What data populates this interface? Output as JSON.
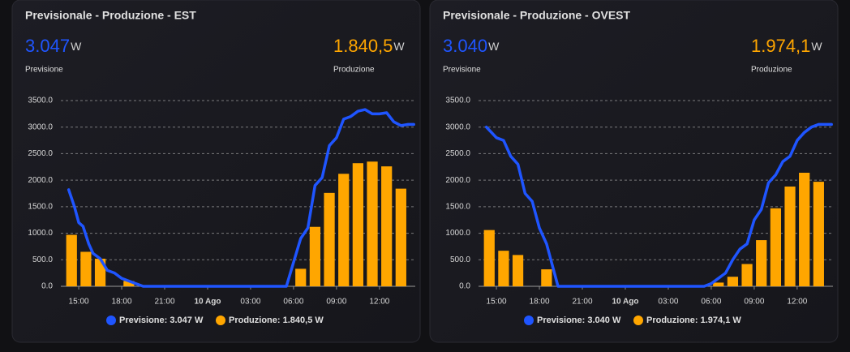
{
  "chart_data": [
    {
      "type": "line_bar",
      "title": "Previsionale - Produzione - EST",
      "stats": [
        {
          "value": "3.047",
          "unit": "W",
          "color": "#1f55ff"
        },
        {
          "value": "1.840,5",
          "unit": "W",
          "color": "#ffa600"
        }
      ],
      "xlim": [
        13.75,
        38.5
      ],
      "xticks": [
        {
          "value": 15,
          "label": "15:00"
        },
        {
          "value": 18,
          "label": "18:00"
        },
        {
          "value": 21,
          "label": "21:00"
        },
        {
          "value": 24,
          "label": "10 Ago"
        },
        {
          "value": 27,
          "label": "03:00"
        },
        {
          "value": 30,
          "label": "06:00"
        },
        {
          "value": 33,
          "label": "09:00"
        },
        {
          "value": 36,
          "label": "12:00"
        }
      ],
      "ylim": [
        0,
        3500
      ],
      "yticks": [
        {
          "value": 0,
          "label": "0.0"
        },
        {
          "value": 500,
          "label": "500.0"
        },
        {
          "value": 1000,
          "label": "1000.0"
        },
        {
          "value": 1500,
          "label": "1500.0"
        },
        {
          "value": 2000,
          "label": "2000.0"
        },
        {
          "value": 2500,
          "label": "2500.0"
        },
        {
          "value": 3000,
          "label": "3000.0"
        },
        {
          "value": 3500,
          "label": "3500.0"
        }
      ],
      "grid": true,
      "series": [
        {
          "name": "Previsione",
          "legend": "Previsione: 3.047 W",
          "type": "line",
          "color": "#1f55ff",
          "x": [
            14.3,
            14.7,
            15.0,
            15.3,
            15.7,
            16.0,
            16.5,
            17.0,
            17.5,
            18.0,
            18.5,
            19.5,
            29.5,
            30.5,
            31.0,
            31.5,
            32.0,
            32.5,
            33.0,
            33.5,
            34.0,
            34.5,
            35.0,
            35.5,
            36.0,
            36.5,
            37.0,
            37.5,
            38.0,
            38.4
          ],
          "values": [
            1820,
            1500,
            1200,
            1130,
            800,
            620,
            520,
            300,
            250,
            150,
            100,
            0,
            0,
            900,
            1100,
            1900,
            2050,
            2650,
            2800,
            3150,
            3200,
            3300,
            3330,
            3250,
            3250,
            3270,
            3100,
            3030,
            3050,
            3050
          ]
        },
        {
          "name": "Produzione",
          "legend": "Produzione: 1.840,5 W",
          "type": "bar",
          "color": "#ffa600",
          "x": [
            14.5,
            15.5,
            16.5,
            18.5,
            30.5,
            31.5,
            32.5,
            33.5,
            34.5,
            35.5,
            36.5,
            37.5
          ],
          "values": [
            970,
            650,
            520,
            100,
            330,
            1120,
            1760,
            2120,
            2320,
            2350,
            2260,
            1840
          ]
        }
      ]
    },
    {
      "type": "line_bar",
      "title": "Previsionale - Produzione - OVEST",
      "stats": [
        {
          "value": "3.040",
          "unit": "W",
          "color": "#1f55ff"
        },
        {
          "value": "1.974,1",
          "unit": "W",
          "color": "#ffa600"
        }
      ],
      "xlim": [
        13.75,
        38.5
      ],
      "xticks": [
        {
          "value": 15,
          "label": "15:00"
        },
        {
          "value": 18,
          "label": "18:00"
        },
        {
          "value": 21,
          "label": "21:00"
        },
        {
          "value": 24,
          "label": "10 Ago"
        },
        {
          "value": 27,
          "label": "03:00"
        },
        {
          "value": 30,
          "label": "06:00"
        },
        {
          "value": 33,
          "label": "09:00"
        },
        {
          "value": 36,
          "label": "12:00"
        }
      ],
      "ylim": [
        0,
        3500
      ],
      "yticks": [
        {
          "value": 0,
          "label": "0.0"
        },
        {
          "value": 500,
          "label": "500.0"
        },
        {
          "value": 1000,
          "label": "1000.0"
        },
        {
          "value": 1500,
          "label": "1500.0"
        },
        {
          "value": 2000,
          "label": "2000.0"
        },
        {
          "value": 2500,
          "label": "2500.0"
        },
        {
          "value": 3000,
          "label": "3000.0"
        },
        {
          "value": 3500,
          "label": "3500.0"
        }
      ],
      "grid": true,
      "series": [
        {
          "name": "Previsione",
          "legend": "Previsione: 3.040 W",
          "type": "line",
          "color": "#1f55ff",
          "x": [
            14.3,
            15.0,
            15.5,
            16.0,
            16.5,
            17.0,
            17.5,
            18.0,
            18.5,
            19.0,
            19.3,
            29.5,
            30.0,
            30.5,
            31.0,
            31.5,
            32.0,
            32.5,
            33.0,
            33.5,
            34.0,
            34.5,
            35.0,
            35.5,
            36.0,
            36.5,
            37.0,
            37.5,
            38.4
          ],
          "values": [
            3000,
            2800,
            2750,
            2450,
            2300,
            1750,
            1600,
            1100,
            800,
            300,
            0,
            0,
            50,
            150,
            250,
            500,
            700,
            800,
            1250,
            1450,
            1950,
            2100,
            2350,
            2450,
            2750,
            2900,
            3000,
            3050,
            3050
          ]
        },
        {
          "name": "Produzione",
          "legend": "Produzione: 1.974,1 W",
          "type": "bar",
          "color": "#ffa600",
          "x": [
            14.5,
            15.5,
            16.5,
            18.5,
            30.5,
            31.5,
            32.5,
            33.5,
            34.5,
            35.5,
            36.5,
            37.5
          ],
          "values": [
            1060,
            670,
            590,
            320,
            70,
            180,
            420,
            870,
            1470,
            1880,
            2140,
            1970
          ]
        }
      ]
    }
  ]
}
